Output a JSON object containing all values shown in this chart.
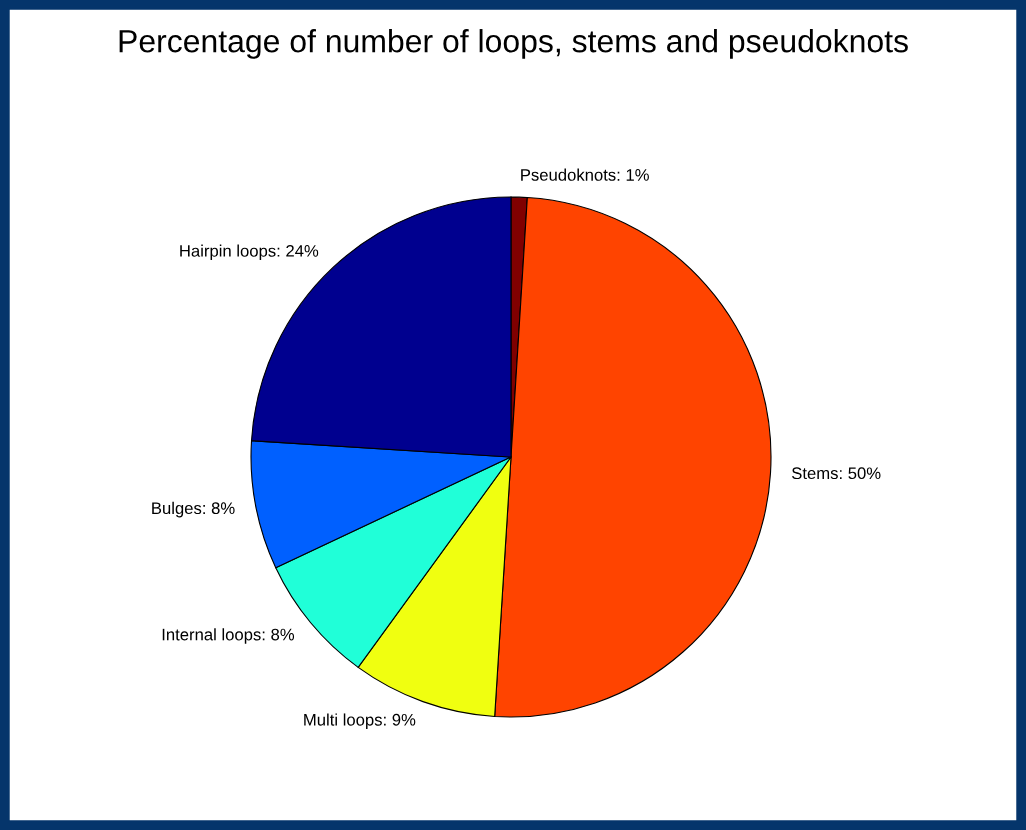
{
  "chart_data": {
    "type": "pie",
    "title": "Percentage of number of loops, stems and pseudoknots",
    "categories": [
      "Pseudoknots: 1%",
      "Stems: 50%",
      "Multi loops: 9%",
      "Internal loops: 8%",
      "Bulges: 8%",
      "Hairpin loops: 24%"
    ],
    "values": [
      1,
      50,
      9,
      8,
      8,
      24
    ],
    "colors": [
      "#800000",
      "#ff4400",
      "#f0ff10",
      "#20ffd8",
      "#0060ff",
      "#00008f"
    ]
  }
}
